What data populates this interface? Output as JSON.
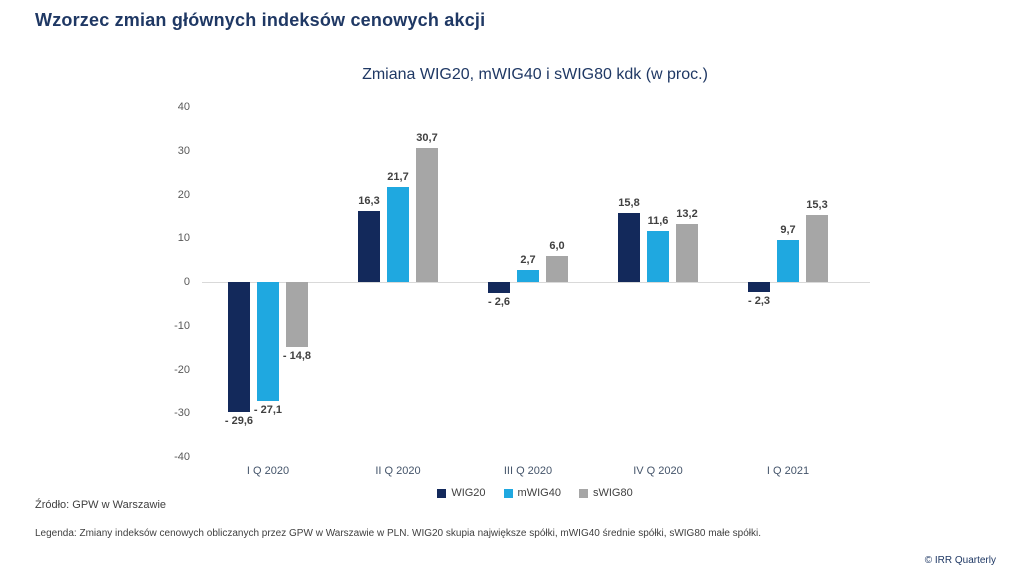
{
  "page_title": "Wzorzec zmian głównych indeksów cenowych akcji",
  "chart_data": {
    "type": "bar",
    "title": "Zmiana WIG20, mWIG40 i sWIG80 kdk (w proc.)",
    "categories": [
      "I Q 2020",
      "II Q 2020",
      "III Q 2020",
      "IV Q 2020",
      "I Q 2021"
    ],
    "series": [
      {
        "name": "WIG20",
        "color": "#13295b",
        "values": [
          -29.6,
          16.3,
          -2.6,
          15.8,
          -2.3
        ],
        "labels": [
          "- 29,6",
          "16,3",
          "- 2,6",
          "15,8",
          "- 2,3"
        ]
      },
      {
        "name": "mWIG40",
        "color": "#1fa8e0",
        "values": [
          -27.1,
          21.7,
          2.7,
          11.6,
          9.7
        ],
        "labels": [
          "- 27,1",
          "21,7",
          "2,7",
          "11,6",
          "9,7"
        ]
      },
      {
        "name": "sWIG80",
        "color": "#a6a6a6",
        "values": [
          -14.8,
          30.7,
          6.0,
          13.2,
          15.3
        ],
        "labels": [
          "- 14,8",
          "30,7",
          "6,0",
          "13,2",
          "15,3"
        ]
      }
    ],
    "y_ticks": [
      40,
      30,
      20,
      10,
      0,
      -10,
      -20,
      -30,
      -40
    ],
    "ylim": [
      -40,
      40
    ],
    "grid": false,
    "legend_position": "bottom",
    "value_decimal_separator": ","
  },
  "footer": {
    "source": "Źródło: GPW w Warszawie",
    "legend_note": "Legenda: Zmiany indeksów cenowych obliczanych przez GPW w Warszawie w PLN. WIG20 skupia największe spółki, mWIG40 średnie spółki, sWIG80 małe spółki.",
    "copyright": "© IRR Quarterly"
  }
}
